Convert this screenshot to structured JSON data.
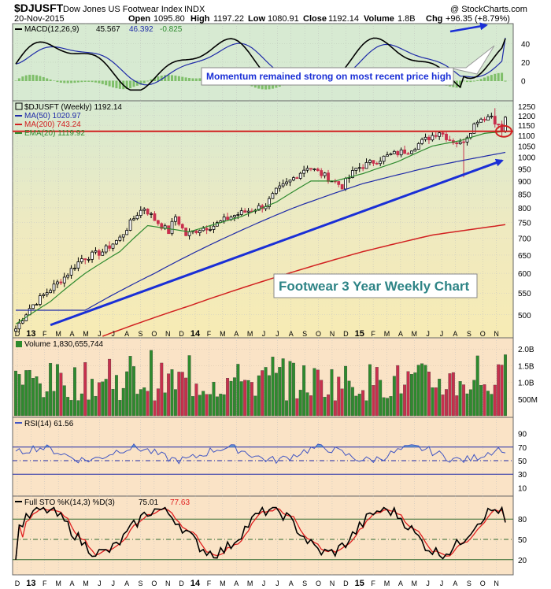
{
  "header": {
    "symbol": "$DJUSFT",
    "name": "Dow Jones US Footwear Index",
    "exchange": "INDX",
    "watermark": "@ StockCharts.com",
    "date": "20-Nov-2015",
    "open_label": "Open",
    "open": "1095.80",
    "high_label": "High",
    "high": "1197.22",
    "low_label": "Low",
    "low": "1080.91",
    "close_label": "Close",
    "close": "1192.14",
    "volume_label": "Volume",
    "volume": "1.8B",
    "chg_label": "Chg",
    "chg": "+96.35 (+8.79%)"
  },
  "colors": {
    "price_bg": "#f7ebb4",
    "macd_bg": "#d7ead2",
    "ind_bg": "#fae3c6",
    "up": "#2e8b2e",
    "down": "#c8304d",
    "ma50": "#1e2aa8",
    "ma200": "#d12020",
    "ema20": "#2f8a2f",
    "accent_arrow": "#1a2fd6",
    "rsi_line": "#4156c4",
    "sto_k": "#000000",
    "sto_d": "#e02020"
  },
  "annotations": {
    "callout": "Momentum remained strong on most recent price high",
    "title_box": "Footwear 3 Year Weekly Chart"
  },
  "x_axis": {
    "labels": [
      "D",
      "13",
      "F",
      "M",
      "A",
      "M",
      "J",
      "J",
      "A",
      "S",
      "O",
      "N",
      "D",
      "14",
      "F",
      "M",
      "A",
      "M",
      "J",
      "J",
      "A",
      "S",
      "O",
      "N",
      "D",
      "15",
      "F",
      "M",
      "A",
      "M",
      "J",
      "J",
      "A",
      "S",
      "O",
      "N"
    ]
  },
  "chart_data": [
    {
      "panel": "macd",
      "type": "line",
      "legend": [
        "MACD(12,26,9)",
        "45.567",
        "46.392",
        "-0.825"
      ],
      "y_ticks": [
        "40",
        "20",
        "0"
      ],
      "ylim": [
        -20,
        60
      ]
    },
    {
      "panel": "price",
      "type": "ohlc-bar",
      "legend": {
        "price": "$DJUSFT (Weekly) 1192.14",
        "ma50": "MA(50) 1020.97",
        "ma200": "MA(200) 743.24",
        "ema20": "EMA(20) 1119.92"
      },
      "y_ticks": [
        "1250",
        "1200",
        "1150",
        "1100",
        "1050",
        "1000",
        "950",
        "900",
        "850",
        "800",
        "750",
        "700",
        "650",
        "600",
        "550",
        "500"
      ],
      "scale": "log",
      "ylim": [
        455,
        1272
      ],
      "resistance": 1120,
      "keypoints_close": [
        [
          0,
          470
        ],
        [
          4,
          515
        ],
        [
          10,
          560
        ],
        [
          14,
          590
        ],
        [
          19,
          640
        ],
        [
          25,
          660
        ],
        [
          30,
          700
        ],
        [
          35,
          780
        ],
        [
          37,
          800
        ],
        [
          40,
          760
        ],
        [
          42,
          740
        ],
        [
          44,
          720
        ],
        [
          46,
          770
        ],
        [
          49,
          710
        ],
        [
          53,
          730
        ],
        [
          57,
          740
        ],
        [
          62,
          770
        ],
        [
          67,
          790
        ],
        [
          72,
          810
        ],
        [
          75,
          860
        ],
        [
          79,
          900
        ],
        [
          84,
          960
        ],
        [
          89,
          920
        ],
        [
          94,
          880
        ],
        [
          98,
          950
        ],
        [
          103,
          980
        ],
        [
          108,
          1010
        ],
        [
          113,
          1030
        ],
        [
          118,
          1080
        ],
        [
          122,
          1120
        ],
        [
          125,
          1080
        ],
        [
          128,
          1060
        ],
        [
          130,
          1100
        ],
        [
          133,
          1180
        ],
        [
          137,
          1200
        ],
        [
          140,
          1120
        ],
        [
          141,
          1192
        ]
      ],
      "ma50_keypoints": [
        [
          0,
          510
        ],
        [
          20,
          510
        ],
        [
          40,
          600
        ],
        [
          60,
          700
        ],
        [
          80,
          800
        ],
        [
          100,
          890
        ],
        [
          120,
          960
        ],
        [
          141,
          1021
        ]
      ],
      "ema20_keypoints": [
        [
          0,
          480
        ],
        [
          10,
          530
        ],
        [
          20,
          600
        ],
        [
          30,
          660
        ],
        [
          38,
          740
        ],
        [
          50,
          720
        ],
        [
          65,
          770
        ],
        [
          75,
          820
        ],
        [
          85,
          900
        ],
        [
          92,
          900
        ],
        [
          100,
          930
        ],
        [
          110,
          980
        ],
        [
          120,
          1050
        ],
        [
          128,
          1075
        ],
        [
          135,
          1110
        ],
        [
          141,
          1120
        ]
      ],
      "ma200_keypoints": [
        [
          25,
          455
        ],
        [
          50,
          520
        ],
        [
          75,
          590
        ],
        [
          100,
          660
        ],
        [
          120,
          710
        ],
        [
          141,
          743
        ]
      ],
      "trend_arrow": [
        [
          10,
          478
        ],
        [
          141,
          985
        ]
      ]
    },
    {
      "panel": "volume",
      "type": "bar",
      "legend": "Volume 1,830,655,744",
      "y_ticks": [
        "2.0B",
        "1.5B",
        "1.0B",
        "500M"
      ],
      "ylim": [
        0,
        2.1
      ]
    },
    {
      "panel": "rsi",
      "type": "line",
      "legend": "RSI(14) 61.56",
      "y_ticks": [
        "90",
        "70",
        "50",
        "30",
        "10"
      ],
      "ylim": [
        0,
        100
      ],
      "levels": [
        70,
        50,
        30
      ]
    },
    {
      "panel": "sto",
      "type": "line",
      "legend": [
        "Full STO %K(14,3) %D(3)",
        "75.01",
        "77.63"
      ],
      "y_ticks": [
        "80",
        "50",
        "20"
      ],
      "ylim": [
        0,
        100
      ],
      "levels": [
        80,
        50,
        20
      ]
    }
  ]
}
